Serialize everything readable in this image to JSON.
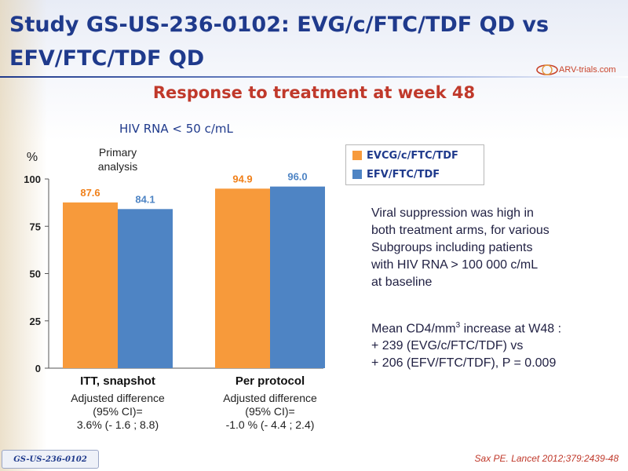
{
  "slide": {
    "title_line1": "Study GS-US-236-0102: EVG/c/FTC/TDF QD vs",
    "title_line2": "EFV/FTC/TDF QD",
    "logo_text": "ARV-trials.com",
    "subtitle": "Response to treatment at week 48",
    "chart_heading": "HIV RNA < 50 c/mL",
    "note1": [
      "Viral suppression was high in",
      "both treatment arms, for various",
      "Subgroups including patients",
      "with HIV RNA > 100 000 c/mL",
      "at baseline"
    ],
    "note2": [
      "Mean CD4/mm",
      "3",
      " increase at W48 :",
      "+ 239 (EVG/c/FTC/TDF) vs",
      "+ 206 (EFV/FTC/TDF), P = 0.009"
    ],
    "footer_tag": "GS-US-236-0102",
    "citation": "Sax PE. Lancet 2012;379:2439-48"
  },
  "colors": {
    "title": "#1f3a8c",
    "subtitle": "#c0392b",
    "series_1": "#f79a3b",
    "series_2": "#4e84c4",
    "label_1": "#f0801a",
    "label_2": "#4e84c4"
  },
  "chart_data": {
    "type": "bar",
    "title": "HIV RNA < 50 c/mL",
    "ylabel": "%",
    "ylim": [
      0,
      100
    ],
    "yticks": [
      0,
      25,
      50,
      75,
      100
    ],
    "grid": false,
    "legend_position": "top-right",
    "categories": [
      "ITT, snapshot",
      "Per protocol"
    ],
    "series": [
      {
        "name": "EVCG/c/FTC/TDF",
        "values": [
          87.6,
          94.9
        ]
      },
      {
        "name": "EFV/FTC/TDF",
        "values": [
          84.1,
          96.0
        ]
      }
    ],
    "value_labels": [
      [
        "87.6",
        "94.9"
      ],
      [
        "84.1",
        "96.0"
      ]
    ],
    "annotations": {
      "primary": [
        "Primary",
        "analysis"
      ],
      "group_notes": [
        [
          "Adjusted difference",
          "(95% CI)=",
          "3.6% (- 1.6 ; 8.8)"
        ],
        [
          "Adjusted difference",
          "(95% CI)=",
          "-1.0 % (- 4.4 ; 2.4)"
        ]
      ]
    }
  }
}
